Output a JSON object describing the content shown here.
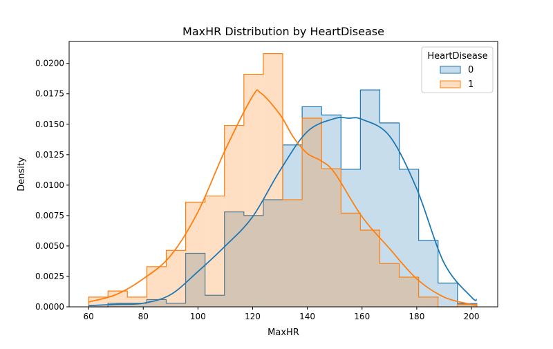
{
  "chart_data": {
    "type": "histogram",
    "title": "MaxHR Distribution by HeartDisease",
    "xlabel": "MaxHR",
    "ylabel": "Density",
    "xlim": [
      52.9,
      209.6
    ],
    "ylim": [
      0,
      0.0218
    ],
    "xticks": [
      60,
      80,
      100,
      120,
      140,
      160,
      180,
      200
    ],
    "yticks": [
      "0.0000",
      "0.0025",
      "0.0050",
      "0.0075",
      "0.0100",
      "0.0125",
      "0.0150",
      "0.0175",
      "0.0200"
    ],
    "grid": false,
    "bin_edges": [
      60,
      67.1,
      74.2,
      81.3,
      88.4,
      95.5,
      102.6,
      109.7,
      116.8,
      123.9,
      131,
      138.1,
      145.2,
      152.3,
      159.4,
      166.5,
      173.6,
      180.7,
      187.8,
      194.9,
      202
    ],
    "legend": {
      "title": "HeartDisease",
      "placement": "top-right"
    },
    "series": [
      {
        "name": "0",
        "color": "#1f77b4",
        "density": [
          0.0,
          0.0003,
          0.0003,
          0.0006,
          0.0003,
          0.0044,
          0.00095,
          0.0078,
          0.0075,
          0.0088,
          0.0133,
          0.01644,
          0.01576,
          0.0113,
          0.01782,
          0.01511,
          0.0113,
          0.00545,
          0.00195,
          0.00027
        ],
        "kde": [
          [
            60,
            0.0001
          ],
          [
            70,
            0.0002
          ],
          [
            80,
            0.0003
          ],
          [
            90,
            0.001
          ],
          [
            100,
            0.0029
          ],
          [
            110,
            0.005
          ],
          [
            120,
            0.0074
          ],
          [
            130,
            0.0112
          ],
          [
            140,
            0.0144
          ],
          [
            150,
            0.01547
          ],
          [
            155,
            0.0155
          ],
          [
            160,
            0.0154
          ],
          [
            170,
            0.01405
          ],
          [
            180,
            0.0097
          ],
          [
            190,
            0.0036
          ],
          [
            200,
            0.0008
          ],
          [
            202,
            0.0006
          ]
        ]
      },
      {
        "name": "1",
        "color": "#ff7f0e",
        "density": [
          0.0008,
          0.0013,
          0.0008,
          0.0033,
          0.00464,
          0.0086,
          0.0091,
          0.0149,
          0.0191,
          0.0208,
          0.0088,
          0.0155,
          0.01135,
          0.0077,
          0.0063,
          0.00356,
          0.00244,
          0.0008,
          0.0,
          0.0002
        ],
        "kde": [
          [
            60,
            0.0004
          ],
          [
            70,
            0.001
          ],
          [
            80,
            0.0023
          ],
          [
            90,
            0.0042
          ],
          [
            100,
            0.0078
          ],
          [
            110,
            0.0129
          ],
          [
            120,
            0.0173
          ],
          [
            123,
            0.01756
          ],
          [
            130,
            0.0158
          ],
          [
            135,
            0.0139
          ],
          [
            140,
            0.0126
          ],
          [
            145,
            0.012
          ],
          [
            150,
            0.011
          ],
          [
            160,
            0.0074
          ],
          [
            170,
            0.0048
          ],
          [
            180,
            0.0023
          ],
          [
            190,
            0.0008
          ],
          [
            200,
            0.0002
          ],
          [
            202,
            0.00015
          ]
        ]
      }
    ]
  }
}
